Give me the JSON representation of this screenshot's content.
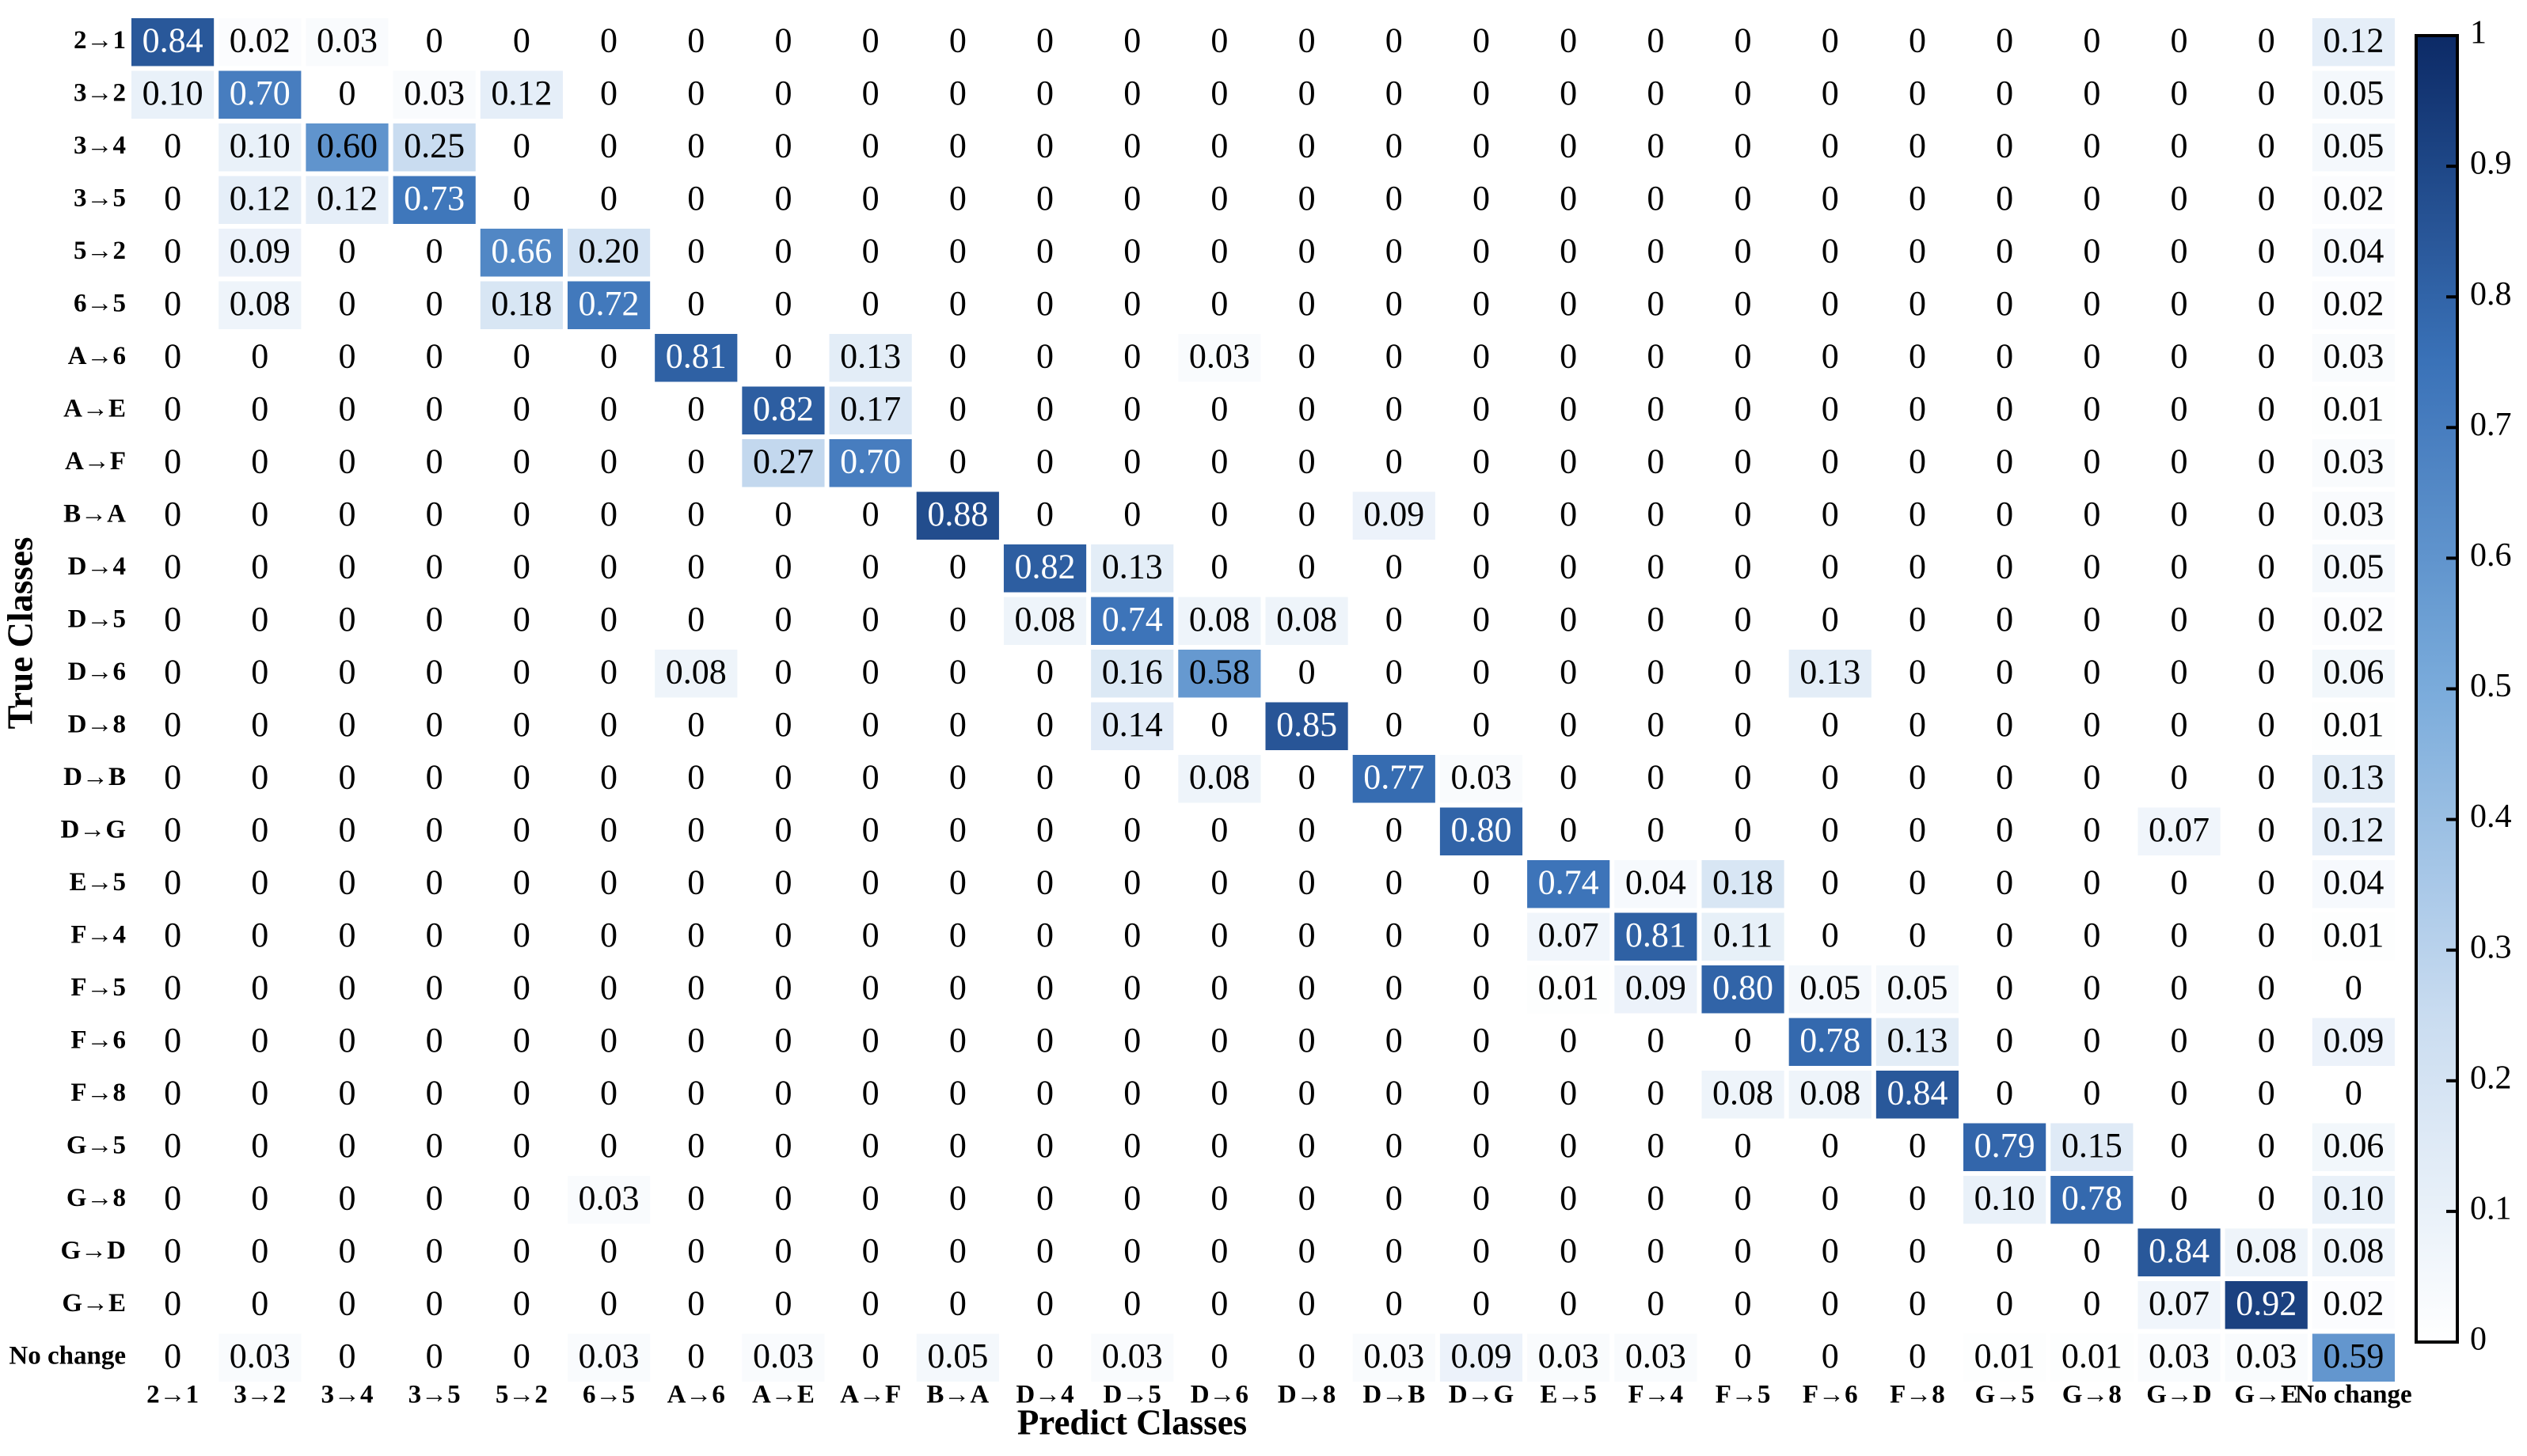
{
  "chart_data": {
    "type": "heatmap",
    "xlabel": "Predict Classes",
    "ylabel": "True Classes",
    "x_categories": [
      "2→1",
      "3→2",
      "3→4",
      "3→5",
      "5→2",
      "6→5",
      "A→6",
      "A→E",
      "A→F",
      "B→A",
      "D→4",
      "D→5",
      "D→6",
      "D→8",
      "D→B",
      "D→G",
      "E→5",
      "F→4",
      "F→5",
      "F→6",
      "F→8",
      "G→5",
      "G→8",
      "G→D",
      "G→E",
      "No change"
    ],
    "y_categories": [
      "2→1",
      "3→2",
      "3→4",
      "3→5",
      "5→2",
      "6→5",
      "A→6",
      "A→E",
      "A→F",
      "B→A",
      "D→4",
      "D→5",
      "D→6",
      "D→8",
      "D→B",
      "D→G",
      "E→5",
      "F→4",
      "F→5",
      "F→6",
      "F→8",
      "G→5",
      "G→8",
      "G→D",
      "G→E",
      "No change"
    ],
    "values": [
      [
        0.84,
        0.02,
        0.03,
        0,
        0,
        0,
        0,
        0,
        0,
        0,
        0,
        0,
        0,
        0,
        0,
        0,
        0,
        0,
        0,
        0,
        0,
        0,
        0,
        0,
        0,
        0.12
      ],
      [
        0.1,
        0.7,
        0,
        0.03,
        0.12,
        0,
        0,
        0,
        0,
        0,
        0,
        0,
        0,
        0,
        0,
        0,
        0,
        0,
        0,
        0,
        0,
        0,
        0,
        0,
        0,
        0.05
      ],
      [
        0,
        0.1,
        0.6,
        0.25,
        0,
        0,
        0,
        0,
        0,
        0,
        0,
        0,
        0,
        0,
        0,
        0,
        0,
        0,
        0,
        0,
        0,
        0,
        0,
        0,
        0,
        0.05
      ],
      [
        0,
        0.12,
        0.12,
        0.73,
        0,
        0,
        0,
        0,
        0,
        0,
        0,
        0,
        0,
        0,
        0,
        0,
        0,
        0,
        0,
        0,
        0,
        0,
        0,
        0,
        0,
        0.02
      ],
      [
        0,
        0.09,
        0,
        0,
        0.66,
        0.2,
        0,
        0,
        0,
        0,
        0,
        0,
        0,
        0,
        0,
        0,
        0,
        0,
        0,
        0,
        0,
        0,
        0,
        0,
        0,
        0.04
      ],
      [
        0,
        0.08,
        0,
        0,
        0.18,
        0.72,
        0,
        0,
        0,
        0,
        0,
        0,
        0,
        0,
        0,
        0,
        0,
        0,
        0,
        0,
        0,
        0,
        0,
        0,
        0,
        0.02
      ],
      [
        0,
        0,
        0,
        0,
        0,
        0,
        0.81,
        0,
        0.13,
        0,
        0,
        0,
        0.03,
        0,
        0,
        0,
        0,
        0,
        0,
        0,
        0,
        0,
        0,
        0,
        0,
        0.03
      ],
      [
        0,
        0,
        0,
        0,
        0,
        0,
        0,
        0.82,
        0.17,
        0,
        0,
        0,
        0,
        0,
        0,
        0,
        0,
        0,
        0,
        0,
        0,
        0,
        0,
        0,
        0,
        0.01
      ],
      [
        0,
        0,
        0,
        0,
        0,
        0,
        0,
        0.27,
        0.7,
        0,
        0,
        0,
        0,
        0,
        0,
        0,
        0,
        0,
        0,
        0,
        0,
        0,
        0,
        0,
        0,
        0.03
      ],
      [
        0,
        0,
        0,
        0,
        0,
        0,
        0,
        0,
        0,
        0.88,
        0,
        0,
        0,
        0,
        0.09,
        0,
        0,
        0,
        0,
        0,
        0,
        0,
        0,
        0,
        0,
        0.03
      ],
      [
        0,
        0,
        0,
        0,
        0,
        0,
        0,
        0,
        0,
        0,
        0.82,
        0.13,
        0,
        0,
        0,
        0,
        0,
        0,
        0,
        0,
        0,
        0,
        0,
        0,
        0,
        0.05
      ],
      [
        0,
        0,
        0,
        0,
        0,
        0,
        0,
        0,
        0,
        0,
        0.08,
        0.74,
        0.08,
        0.08,
        0,
        0,
        0,
        0,
        0,
        0,
        0,
        0,
        0,
        0,
        0,
        0.02
      ],
      [
        0,
        0,
        0,
        0,
        0,
        0,
        0.08,
        0,
        0,
        0,
        0,
        0.16,
        0.58,
        0,
        0,
        0,
        0,
        0,
        0,
        0.13,
        0,
        0,
        0,
        0,
        0,
        0.06
      ],
      [
        0,
        0,
        0,
        0,
        0,
        0,
        0,
        0,
        0,
        0,
        0,
        0.14,
        0,
        0.85,
        0,
        0,
        0,
        0,
        0,
        0,
        0,
        0,
        0,
        0,
        0,
        0.01
      ],
      [
        0,
        0,
        0,
        0,
        0,
        0,
        0,
        0,
        0,
        0,
        0,
        0,
        0.08,
        0,
        0.77,
        0.03,
        0,
        0,
        0,
        0,
        0,
        0,
        0,
        0,
        0,
        0.13
      ],
      [
        0,
        0,
        0,
        0,
        0,
        0,
        0,
        0,
        0,
        0,
        0,
        0,
        0,
        0,
        0,
        0.8,
        0,
        0,
        0,
        0,
        0,
        0,
        0,
        0.07,
        0,
        0.12
      ],
      [
        0,
        0,
        0,
        0,
        0,
        0,
        0,
        0,
        0,
        0,
        0,
        0,
        0,
        0,
        0,
        0,
        0.74,
        0.04,
        0.18,
        0,
        0,
        0,
        0,
        0,
        0,
        0.04
      ],
      [
        0,
        0,
        0,
        0,
        0,
        0,
        0,
        0,
        0,
        0,
        0,
        0,
        0,
        0,
        0,
        0,
        0.07,
        0.81,
        0.11,
        0,
        0,
        0,
        0,
        0,
        0,
        0.01
      ],
      [
        0,
        0,
        0,
        0,
        0,
        0,
        0,
        0,
        0,
        0,
        0,
        0,
        0,
        0,
        0,
        0,
        0.01,
        0.09,
        0.8,
        0.05,
        0.05,
        0,
        0,
        0,
        0,
        0
      ],
      [
        0,
        0,
        0,
        0,
        0,
        0,
        0,
        0,
        0,
        0,
        0,
        0,
        0,
        0,
        0,
        0,
        0,
        0,
        0,
        0.78,
        0.13,
        0,
        0,
        0,
        0,
        0.09
      ],
      [
        0,
        0,
        0,
        0,
        0,
        0,
        0,
        0,
        0,
        0,
        0,
        0,
        0,
        0,
        0,
        0,
        0,
        0,
        0.08,
        0.08,
        0.84,
        0,
        0,
        0,
        0,
        0
      ],
      [
        0,
        0,
        0,
        0,
        0,
        0,
        0,
        0,
        0,
        0,
        0,
        0,
        0,
        0,
        0,
        0,
        0,
        0,
        0,
        0,
        0,
        0.79,
        0.15,
        0,
        0,
        0.06
      ],
      [
        0,
        0,
        0,
        0,
        0,
        0.03,
        0,
        0,
        0,
        0,
        0,
        0,
        0,
        0,
        0,
        0,
        0,
        0,
        0,
        0,
        0,
        0.1,
        0.78,
        0,
        0,
        0.1
      ],
      [
        0,
        0,
        0,
        0,
        0,
        0,
        0,
        0,
        0,
        0,
        0,
        0,
        0,
        0,
        0,
        0,
        0,
        0,
        0,
        0,
        0,
        0,
        0,
        0.84,
        0.08,
        0.08
      ],
      [
        0,
        0,
        0,
        0,
        0,
        0,
        0,
        0,
        0,
        0,
        0,
        0,
        0,
        0,
        0,
        0,
        0,
        0,
        0,
        0,
        0,
        0,
        0,
        0.07,
        0.92,
        0.02
      ],
      [
        0,
        0.03,
        0,
        0,
        0,
        0.03,
        0,
        0.03,
        0,
        0.05,
        0,
        0.03,
        0,
        0,
        0.03,
        0.09,
        0.03,
        0.03,
        0,
        0,
        0,
        0.01,
        0.01,
        0.03,
        0.03,
        0.59
      ]
    ],
    "value_labels": [
      [
        "0.84",
        "0.02",
        "0.03",
        "0",
        "0",
        "0",
        "0",
        "0",
        "0",
        "0",
        "0",
        "0",
        "0",
        "0",
        "0",
        "0",
        "0",
        "0",
        "0",
        "0",
        "0",
        "0",
        "0",
        "0",
        "0",
        "0.12"
      ],
      [
        "0.10",
        "0.70",
        "0",
        "0.03",
        "0.12",
        "0",
        "0",
        "0",
        "0",
        "0",
        "0",
        "0",
        "0",
        "0",
        "0",
        "0",
        "0",
        "0",
        "0",
        "0",
        "0",
        "0",
        "0",
        "0",
        "0",
        "0.05"
      ],
      [
        "0",
        "0.10",
        "0.60",
        "0.25",
        "0",
        "0",
        "0",
        "0",
        "0",
        "0",
        "0",
        "0",
        "0",
        "0",
        "0",
        "0",
        "0",
        "0",
        "0",
        "0",
        "0",
        "0",
        "0",
        "0",
        "0",
        "0.05"
      ],
      [
        "0",
        "0.12",
        "0.12",
        "0.73",
        "0",
        "0",
        "0",
        "0",
        "0",
        "0",
        "0",
        "0",
        "0",
        "0",
        "0",
        "0",
        "0",
        "0",
        "0",
        "0",
        "0",
        "0",
        "0",
        "0",
        "0",
        "0.02"
      ],
      [
        "0",
        "0.09",
        "0",
        "0",
        "0.66",
        "0.20",
        "0",
        "0",
        "0",
        "0",
        "0",
        "0",
        "0",
        "0",
        "0",
        "0",
        "0",
        "0",
        "0",
        "0",
        "0",
        "0",
        "0",
        "0",
        "0",
        "0.04"
      ],
      [
        "0",
        "0.08",
        "0",
        "0",
        "0.18",
        "0.72",
        "0",
        "0",
        "0",
        "0",
        "0",
        "0",
        "0",
        "0",
        "0",
        "0",
        "0",
        "0",
        "0",
        "0",
        "0",
        "0",
        "0",
        "0",
        "0",
        "0.02"
      ],
      [
        "0",
        "0",
        "0",
        "0",
        "0",
        "0",
        "0.81",
        "0",
        "0.13",
        "0",
        "0",
        "0",
        "0.03",
        "0",
        "0",
        "0",
        "0",
        "0",
        "0",
        "0",
        "0",
        "0",
        "0",
        "0",
        "0",
        "0.03"
      ],
      [
        "0",
        "0",
        "0",
        "0",
        "0",
        "0",
        "0",
        "0.82",
        "0.17",
        "0",
        "0",
        "0",
        "0",
        "0",
        "0",
        "0",
        "0",
        "0",
        "0",
        "0",
        "0",
        "0",
        "0",
        "0",
        "0",
        "0.01"
      ],
      [
        "0",
        "0",
        "0",
        "0",
        "0",
        "0",
        "0",
        "0.27",
        "0.70",
        "0",
        "0",
        "0",
        "0",
        "0",
        "0",
        "0",
        "0",
        "0",
        "0",
        "0",
        "0",
        "0",
        "0",
        "0",
        "0",
        "0.03"
      ],
      [
        "0",
        "0",
        "0",
        "0",
        "0",
        "0",
        "0",
        "0",
        "0",
        "0.88",
        "0",
        "0",
        "0",
        "0",
        "0.09",
        "0",
        "0",
        "0",
        "0",
        "0",
        "0",
        "0",
        "0",
        "0",
        "0",
        "0.03"
      ],
      [
        "0",
        "0",
        "0",
        "0",
        "0",
        "0",
        "0",
        "0",
        "0",
        "0",
        "0.82",
        "0.13",
        "0",
        "0",
        "0",
        "0",
        "0",
        "0",
        "0",
        "0",
        "0",
        "0",
        "0",
        "0",
        "0",
        "0.05"
      ],
      [
        "0",
        "0",
        "0",
        "0",
        "0",
        "0",
        "0",
        "0",
        "0",
        "0",
        "0.08",
        "0.74",
        "0.08",
        "0.08",
        "0",
        "0",
        "0",
        "0",
        "0",
        "0",
        "0",
        "0",
        "0",
        "0",
        "0",
        "0.02"
      ],
      [
        "0",
        "0",
        "0",
        "0",
        "0",
        "0",
        "0.08",
        "0",
        "0",
        "0",
        "0",
        "0.16",
        "0.58",
        "0",
        "0",
        "0",
        "0",
        "0",
        "0",
        "0.13",
        "0",
        "0",
        "0",
        "0",
        "0",
        "0.06"
      ],
      [
        "0",
        "0",
        "0",
        "0",
        "0",
        "0",
        "0",
        "0",
        "0",
        "0",
        "0",
        "0.14",
        "0",
        "0.85",
        "0",
        "0",
        "0",
        "0",
        "0",
        "0",
        "0",
        "0",
        "0",
        "0",
        "0",
        "0.01"
      ],
      [
        "0",
        "0",
        "0",
        "0",
        "0",
        "0",
        "0",
        "0",
        "0",
        "0",
        "0",
        "0",
        "0.08",
        "0",
        "0.77",
        "0.03",
        "0",
        "0",
        "0",
        "0",
        "0",
        "0",
        "0",
        "0",
        "0",
        "0.13"
      ],
      [
        "0",
        "0",
        "0",
        "0",
        "0",
        "0",
        "0",
        "0",
        "0",
        "0",
        "0",
        "0",
        "0",
        "0",
        "0",
        "0.80",
        "0",
        "0",
        "0",
        "0",
        "0",
        "0",
        "0",
        "0.07",
        "0",
        "0.12"
      ],
      [
        "0",
        "0",
        "0",
        "0",
        "0",
        "0",
        "0",
        "0",
        "0",
        "0",
        "0",
        "0",
        "0",
        "0",
        "0",
        "0",
        "0.74",
        "0.04",
        "0.18",
        "0",
        "0",
        "0",
        "0",
        "0",
        "0",
        "0.04"
      ],
      [
        "0",
        "0",
        "0",
        "0",
        "0",
        "0",
        "0",
        "0",
        "0",
        "0",
        "0",
        "0",
        "0",
        "0",
        "0",
        "0",
        "0.07",
        "0.81",
        "0.11",
        "0",
        "0",
        "0",
        "0",
        "0",
        "0",
        "0.01"
      ],
      [
        "0",
        "0",
        "0",
        "0",
        "0",
        "0",
        "0",
        "0",
        "0",
        "0",
        "0",
        "0",
        "0",
        "0",
        "0",
        "0",
        "0.01",
        "0.09",
        "0.80",
        "0.05",
        "0.05",
        "0",
        "0",
        "0",
        "0",
        "0"
      ],
      [
        "0",
        "0",
        "0",
        "0",
        "0",
        "0",
        "0",
        "0",
        "0",
        "0",
        "0",
        "0",
        "0",
        "0",
        "0",
        "0",
        "0",
        "0",
        "0",
        "0.78",
        "0.13",
        "0",
        "0",
        "0",
        "0",
        "0.09"
      ],
      [
        "0",
        "0",
        "0",
        "0",
        "0",
        "0",
        "0",
        "0",
        "0",
        "0",
        "0",
        "0",
        "0",
        "0",
        "0",
        "0",
        "0",
        "0",
        "0.08",
        "0.08",
        "0.84",
        "0",
        "0",
        "0",
        "0",
        "0"
      ],
      [
        "0",
        "0",
        "0",
        "0",
        "0",
        "0",
        "0",
        "0",
        "0",
        "0",
        "0",
        "0",
        "0",
        "0",
        "0",
        "0",
        "0",
        "0",
        "0",
        "0",
        "0",
        "0.79",
        "0.15",
        "0",
        "0",
        "0.06"
      ],
      [
        "0",
        "0",
        "0",
        "0",
        "0",
        "0.03",
        "0",
        "0",
        "0",
        "0",
        "0",
        "0",
        "0",
        "0",
        "0",
        "0",
        "0",
        "0",
        "0",
        "0",
        "0",
        "0.10",
        "0.78",
        "0",
        "0",
        "0.10"
      ],
      [
        "0",
        "0",
        "0",
        "0",
        "0",
        "0",
        "0",
        "0",
        "0",
        "0",
        "0",
        "0",
        "0",
        "0",
        "0",
        "0",
        "0",
        "0",
        "0",
        "0",
        "0",
        "0",
        "0",
        "0.84",
        "0.08",
        "0.08"
      ],
      [
        "0",
        "0",
        "0",
        "0",
        "0",
        "0",
        "0",
        "0",
        "0",
        "0",
        "0",
        "0",
        "0",
        "0",
        "0",
        "0",
        "0",
        "0",
        "0",
        "0",
        "0",
        "0",
        "0",
        "0.07",
        "0.92",
        "0.02"
      ],
      [
        "0",
        "0.03",
        "0",
        "0",
        "0",
        "0.03",
        "0",
        "0.03",
        "0",
        "0.05",
        "0",
        "0.03",
        "0",
        "0",
        "0.03",
        "0.09",
        "0.03",
        "0.03",
        "0",
        "0",
        "0",
        "0.01",
        "0.01",
        "0.03",
        "0.03",
        "0.59"
      ]
    ],
    "colormap": [
      "#ffffff",
      "#c9dcf0",
      "#7aabdb",
      "#3a72b8",
      "#0c2a66"
    ],
    "clim": [
      0,
      1
    ],
    "cticks": [
      0,
      0.1,
      0.2,
      0.3,
      0.4,
      0.5,
      0.6,
      0.7,
      0.8,
      0.9,
      1
    ]
  }
}
